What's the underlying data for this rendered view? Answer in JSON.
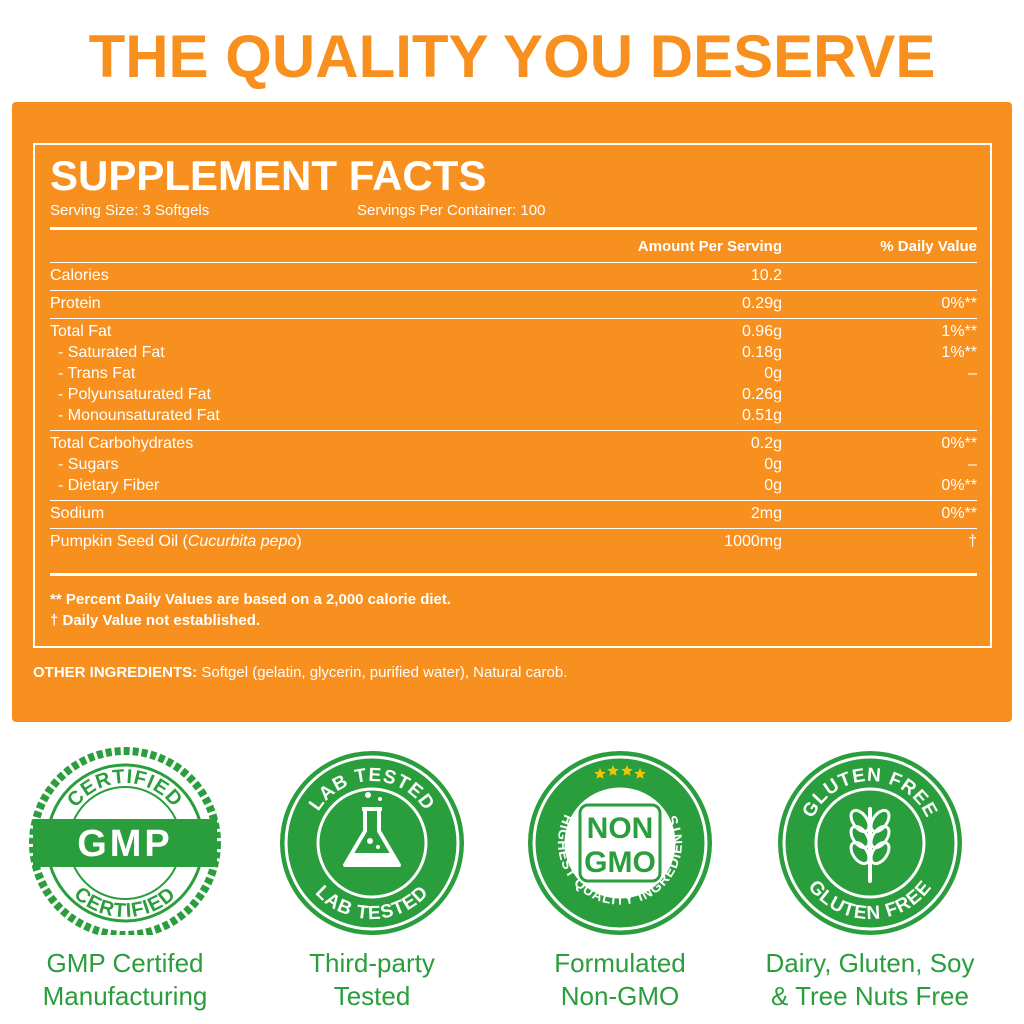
{
  "header": {
    "title": "THE QUALITY YOU DESERVE"
  },
  "facts": {
    "title": "SUPPLEMENT FACTS",
    "serving_size": "Serving Size: 3 Softgels",
    "servings_per_container": "Servings Per Container: 100",
    "columns": [
      "Amount Per Serving",
      "% Daily Value"
    ],
    "groups": [
      [
        {
          "name": "Calories",
          "amount": "10.2"
        }
      ],
      [
        {
          "name": "Protein",
          "amount": "0.29g",
          "dv": "0%**"
        }
      ],
      [
        {
          "name": "Total Fat",
          "amount": "0.96g",
          "dv": "1%**"
        },
        {
          "name": "- Saturated Fat",
          "amount": "0.18g",
          "dv": "1%**"
        },
        {
          "name": "- Trans Fat",
          "amount": "0g",
          "dv": "–"
        },
        {
          "name": "- Polyunsaturated Fat",
          "amount": "0.26g"
        },
        {
          "name": "- Monounsaturated Fat",
          "amount": "0.51g"
        }
      ],
      [
        {
          "name": "Total Carbohydrates",
          "amount": "0.2g",
          "dv": "0%**"
        },
        {
          "name": "- Sugars",
          "amount": "0g",
          "dv": "–"
        },
        {
          "name": "- Dietary Fiber",
          "amount": "0g",
          "dv": "0%**"
        }
      ],
      [
        {
          "name": "Sodium",
          "amount": "2mg",
          "dv": "0%**"
        }
      ],
      [
        {
          "name_parts": {
            "text": "Pumpkin Seed Oil (",
            "italic": "Cucurbita pepo",
            "after": ")"
          },
          "amount": "1000mg",
          "dv": "†"
        }
      ]
    ],
    "footnotes": [
      "** Percent Daily Values are based on a 2,000 calorie diet.",
      "† Daily Value not established."
    ]
  },
  "other_ingredients": {
    "label": "OTHER INGREDIENTS:",
    "text": "Softgel (gelatin, glycerin, purified water), Natural carob."
  },
  "badges": [
    {
      "top_arc": "CERTIFIED",
      "center": "GMP",
      "bottom_arc": "CERTIFIED",
      "caption": [
        "GMP Certifed",
        "Manufacturing"
      ]
    },
    {
      "top_arc": "LAB TESTED",
      "bottom_arc": "LAB TESTED",
      "caption": [
        "Third-party",
        "Tested"
      ]
    },
    {
      "center_lines": [
        "NON",
        "GMO"
      ],
      "bottom_arc": "HIGHEST QUALITY INGREDIENTS",
      "caption": [
        "Formulated",
        "Non-GMO"
      ]
    },
    {
      "top_arc": "GLUTEN FREE",
      "bottom_arc": "GLUTEN FREE",
      "caption": [
        "Dairy, Gluten, Soy",
        "& Tree Nuts Free"
      ]
    }
  ]
}
